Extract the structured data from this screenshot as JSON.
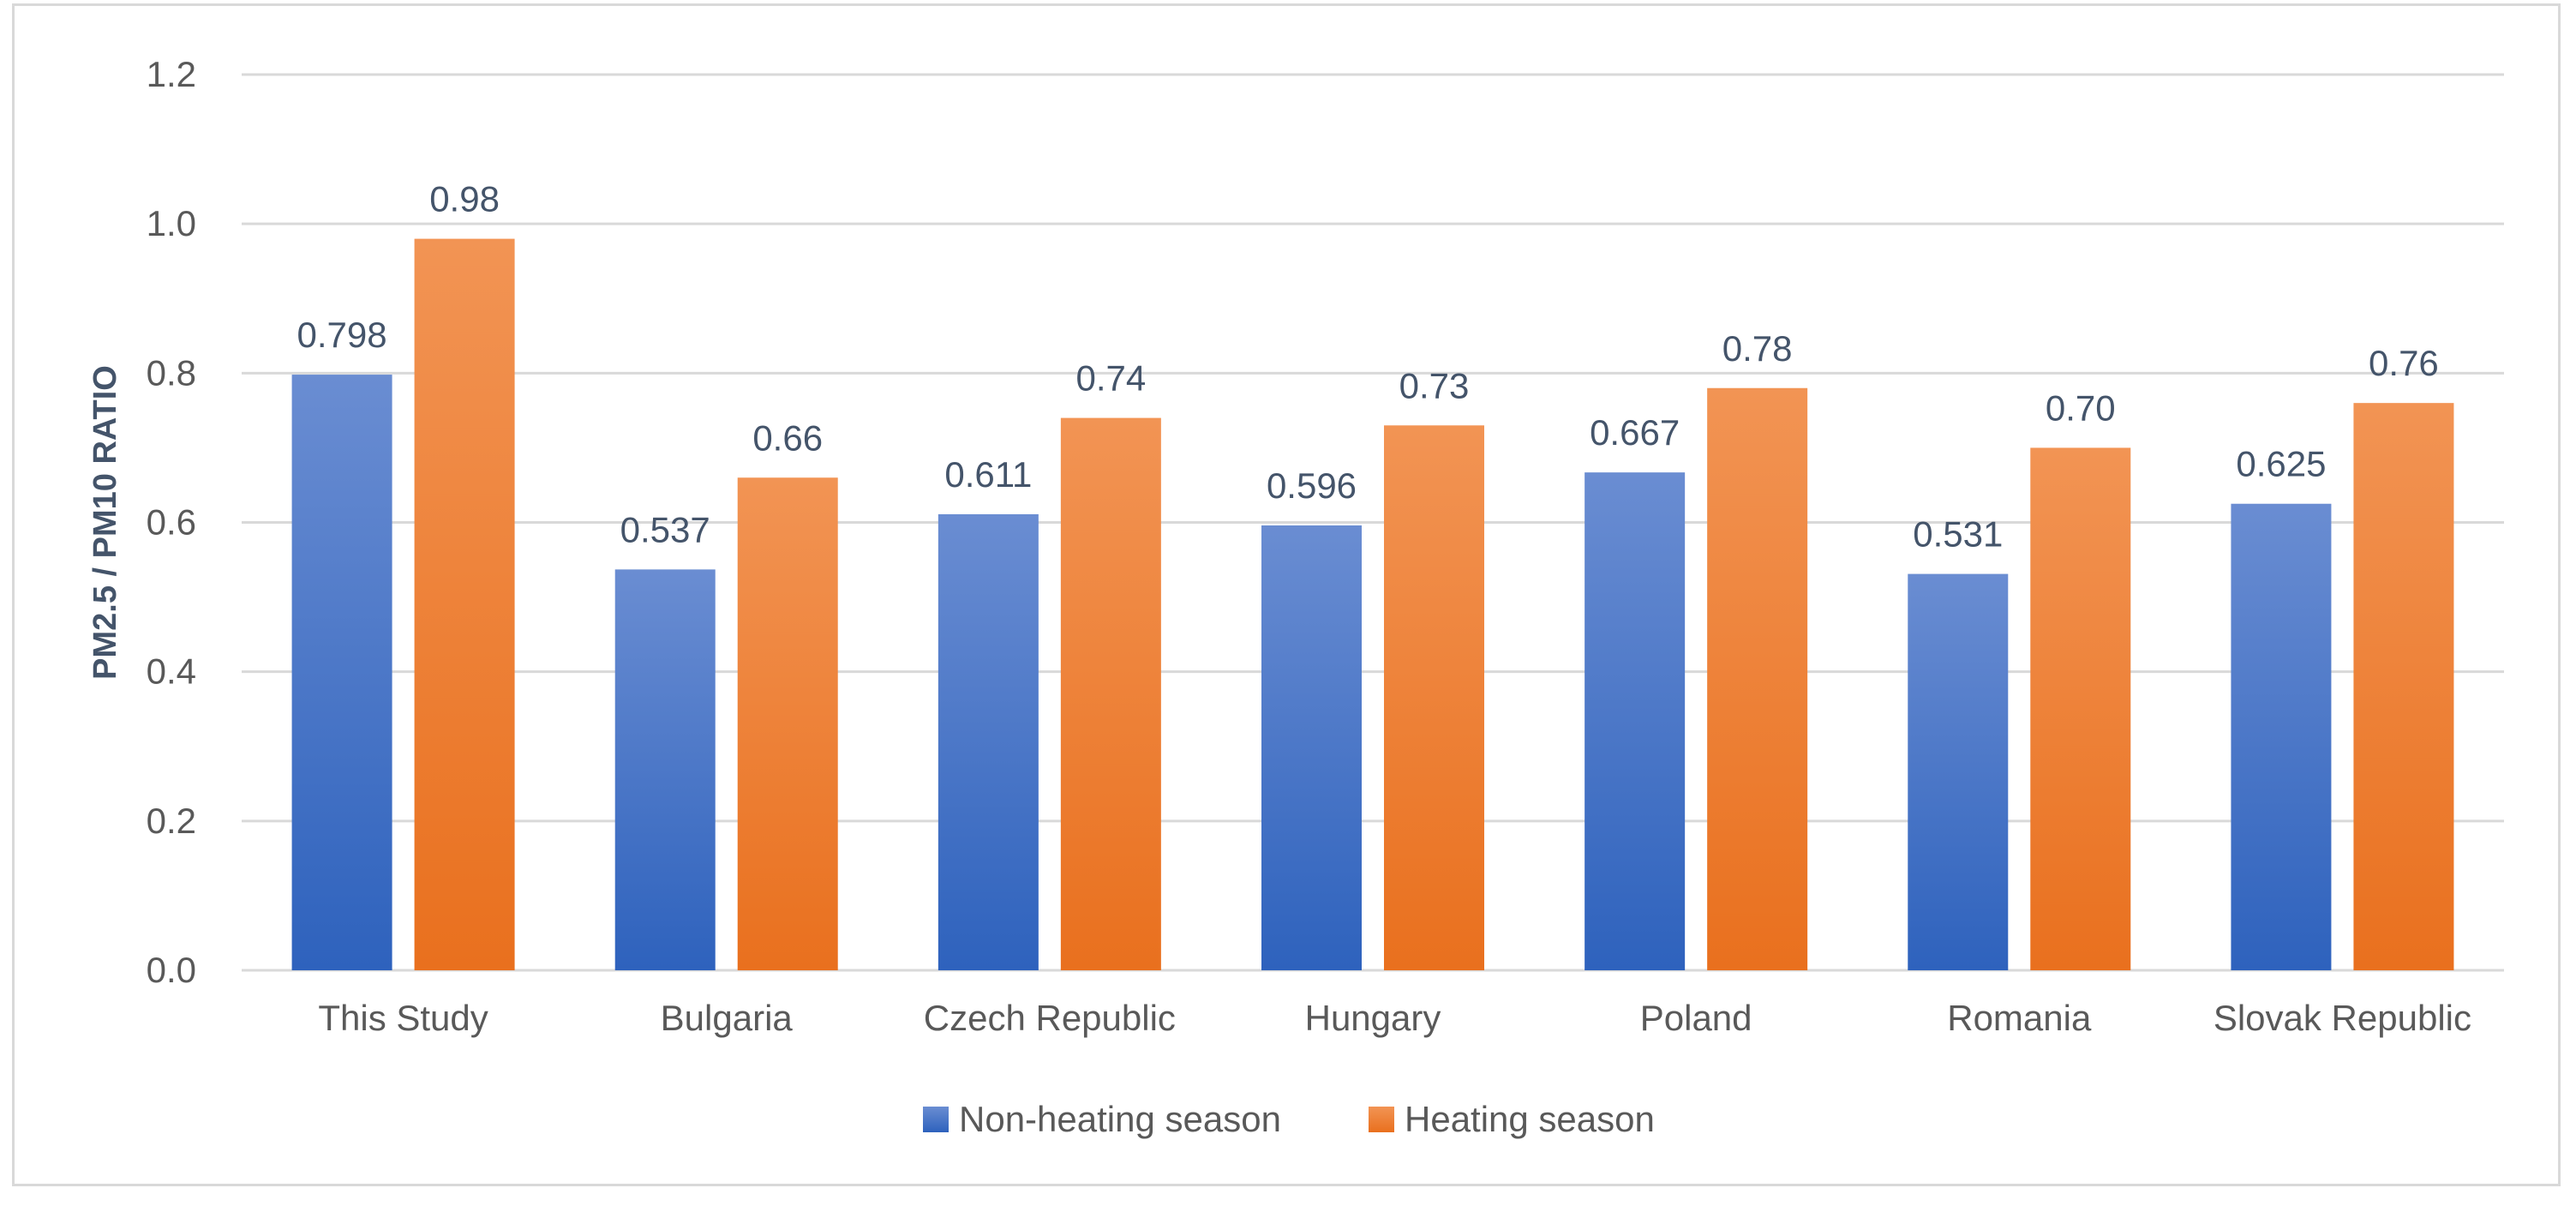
{
  "chart_data": {
    "type": "bar",
    "title": "",
    "xlabel": "",
    "ylabel": "PM2.5 / PM10 RATIO",
    "ylim": [
      0,
      1.2
    ],
    "yticks": [
      "0.0",
      "0.2",
      "0.4",
      "0.6",
      "0.8",
      "1.0",
      "1.2"
    ],
    "ytick_values": [
      0,
      0.2,
      0.4,
      0.6,
      0.8,
      1.0,
      1.2
    ],
    "grid": true,
    "legend_position": "bottom",
    "categories": [
      "This Study",
      "Bulgaria",
      "Czech Republic",
      "Hungary",
      "Poland",
      "Romania",
      "Slovak Republic"
    ],
    "series": [
      {
        "name": "Non-heating season",
        "color": "#4472c4",
        "values": [
          0.798,
          0.537,
          0.611,
          0.596,
          0.667,
          0.531,
          0.625
        ],
        "labels": [
          "0.798",
          "0.537",
          "0.611",
          "0.596",
          "0.667",
          "0.531",
          "0.625"
        ]
      },
      {
        "name": "Heating season",
        "color": "#ed7d31",
        "values": [
          0.98,
          0.66,
          0.74,
          0.73,
          0.78,
          0.7,
          0.76
        ],
        "labels": [
          "0.98",
          "0.66",
          "0.74",
          "0.73",
          "0.78",
          "0.70",
          "0.76"
        ]
      }
    ]
  }
}
